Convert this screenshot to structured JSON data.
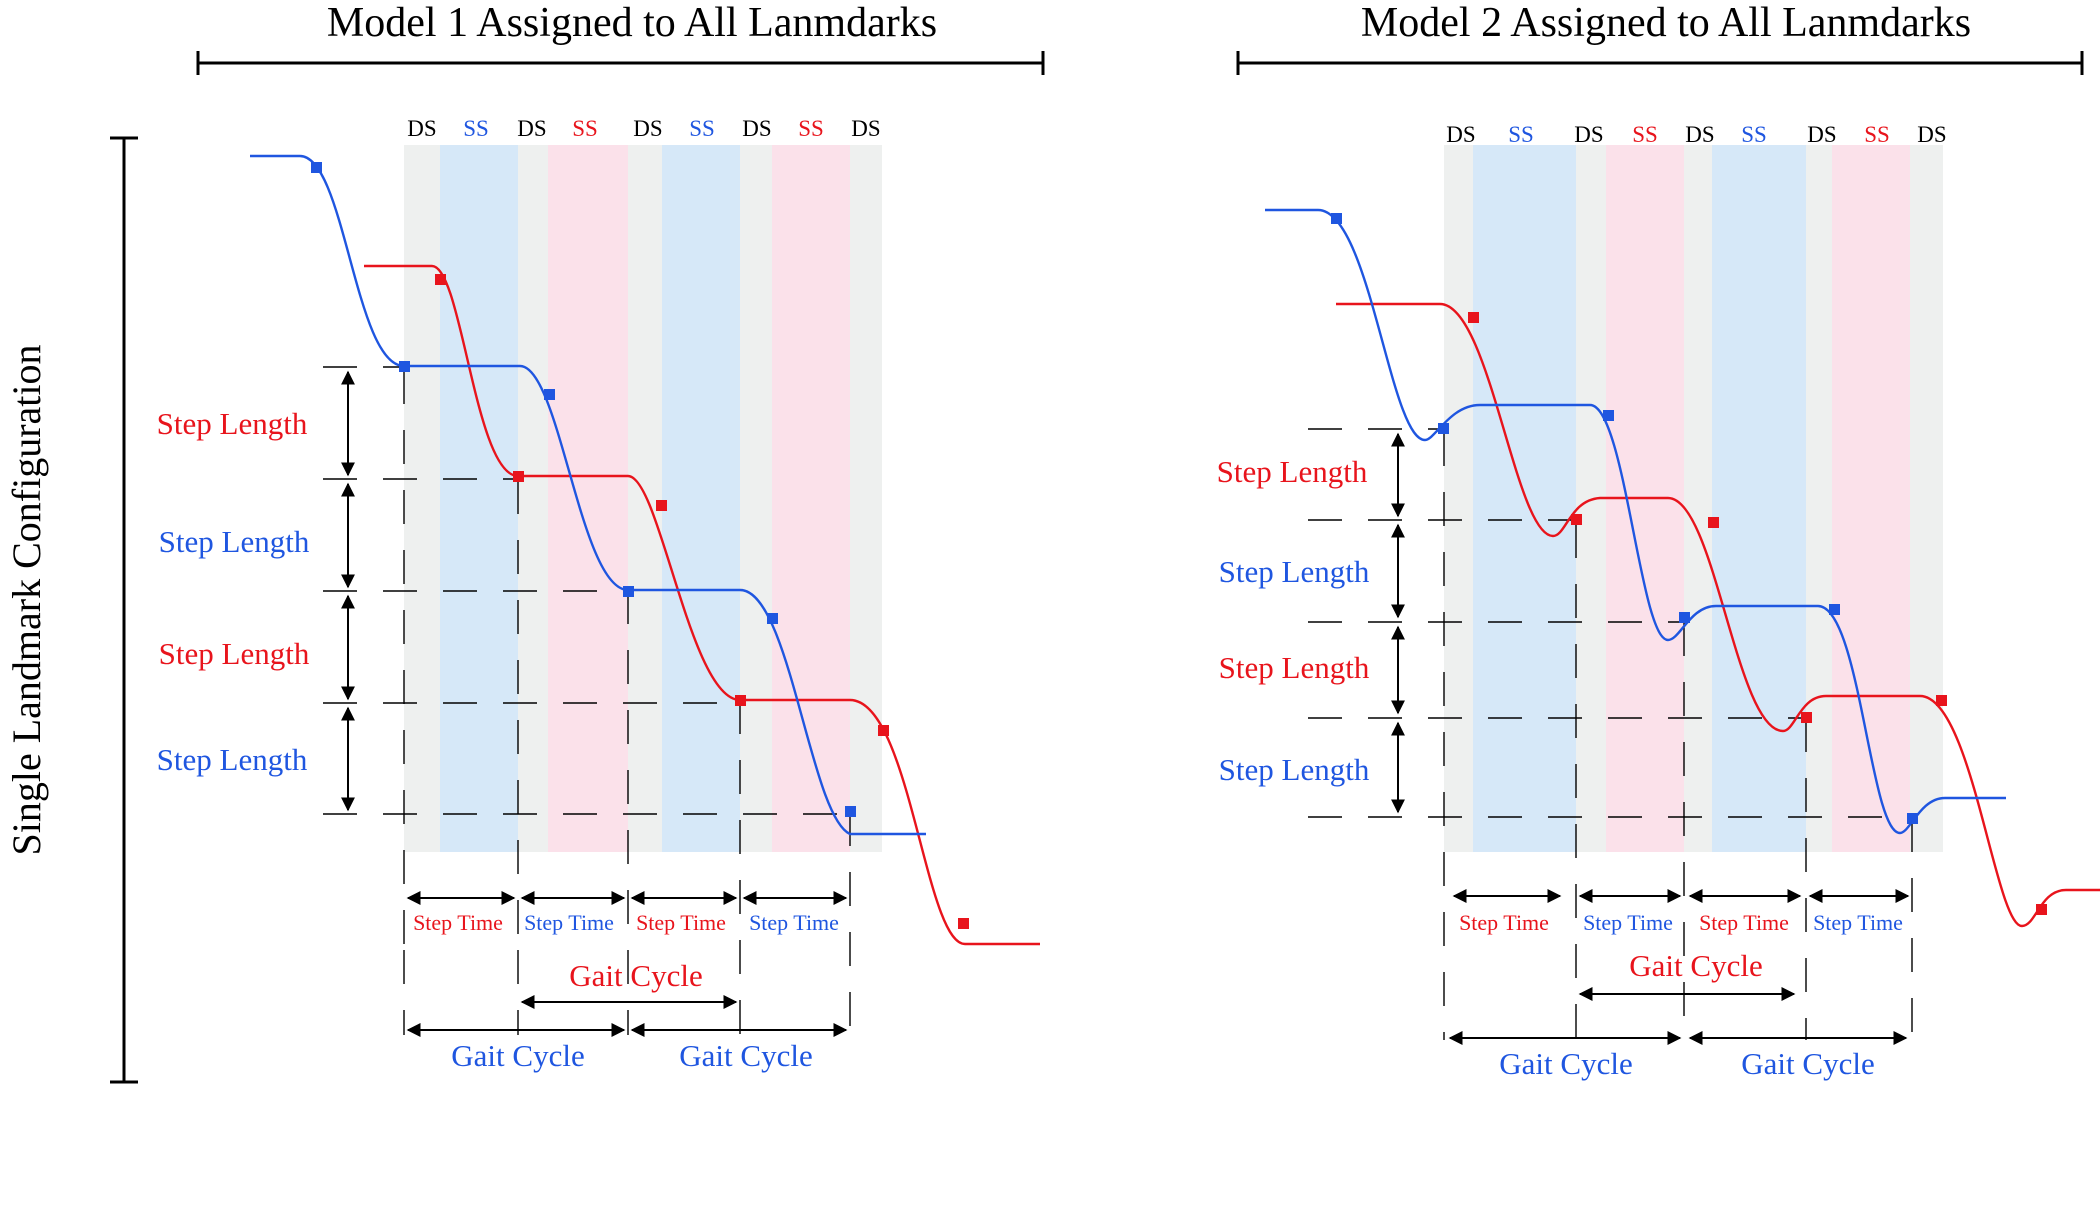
{
  "panels": [
    {
      "title": "Model 1 Assigned to All Lanmdarks",
      "phases": [
        "DS",
        "SS",
        "DS",
        "SS",
        "DS",
        "SS",
        "DS",
        "SS",
        "DS"
      ],
      "step_length_labels": [
        "Step Length",
        "Step Length",
        "Step Length",
        "Step Length"
      ],
      "step_time_labels": [
        "Step Time",
        "Step Time",
        "Step Time",
        "Step Time"
      ],
      "gait_cycle_labels": [
        "Gait Cycle",
        "Gait Cycle",
        "Gait Cycle"
      ]
    },
    {
      "title": "Model 2 Assigned to All Lanmdarks",
      "phases": [
        "DS",
        "SS",
        "DS",
        "SS",
        "DS",
        "SS",
        "DS",
        "SS",
        "DS"
      ],
      "step_length_labels": [
        "Step Length",
        "Step Length",
        "Step Length",
        "Step Length"
      ],
      "step_time_labels": [
        "Step Time",
        "Step Time",
        "Step Time",
        "Step Time"
      ],
      "gait_cycle_labels": [
        "Gait Cycle",
        "Gait Cycle",
        "Gait Cycle"
      ]
    }
  ],
  "row_label": "Single Landmark Configuration",
  "colors": {
    "red": "#e8141c",
    "blue": "#1f56e0",
    "ds_band": "#eef0ef",
    "ss_blue_band": "#d6e8f8",
    "ss_red_band": "#fbe1ea"
  }
}
